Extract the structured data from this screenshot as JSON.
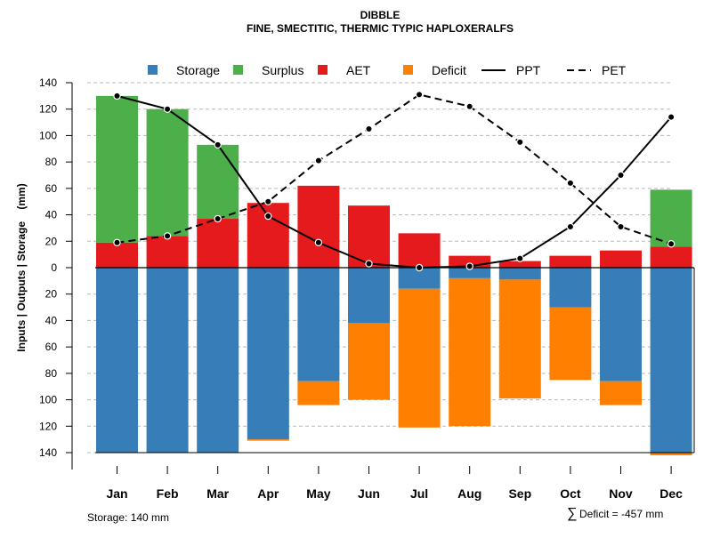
{
  "chart_data": {
    "type": "bar",
    "title": "DIBBLE",
    "subtitle": "FINE, SMECTITIC, THERMIC TYPIC HAPLOXERALFS",
    "ylabel": "Inputs | Outputs | Storage    (mm)",
    "ylim": [
      -140,
      140
    ],
    "yticks": [
      140,
      120,
      100,
      80,
      60,
      40,
      20,
      0,
      -20,
      -40,
      -60,
      -80,
      -100,
      -120,
      -140
    ],
    "ytick_labels": [
      "140",
      "120",
      "100",
      "80",
      "60",
      "40",
      "20",
      "0",
      "20",
      "40",
      "60",
      "80",
      "100",
      "120",
      "140"
    ],
    "grid": true,
    "legend_position": "top",
    "categories": [
      "Jan",
      "Feb",
      "Mar",
      "Apr",
      "May",
      "Jun",
      "Jul",
      "Aug",
      "Sep",
      "Oct",
      "Nov",
      "Dec"
    ],
    "series": [
      {
        "name": "Storage",
        "color": "#377EB8",
        "values": [
          140,
          140,
          140,
          130,
          86,
          42,
          16,
          8,
          9,
          30,
          86,
          140
        ]
      },
      {
        "name": "Surplus",
        "color": "#4DAF4A",
        "values": [
          111,
          96,
          56,
          0,
          0,
          0,
          0,
          0,
          0,
          0,
          0,
          43
        ]
      },
      {
        "name": "AET",
        "color": "#E41A1C",
        "values": [
          19,
          24,
          37,
          49,
          62,
          47,
          26,
          9,
          5,
          9,
          13,
          16
        ]
      },
      {
        "name": "Deficit",
        "color": "#FF7F00",
        "values": [
          0,
          0,
          0,
          1,
          18,
          58,
          105,
          112,
          90,
          55,
          18,
          2
        ]
      },
      {
        "name": "PPT",
        "color": "#000000",
        "line_style": "solid",
        "values": [
          130,
          120,
          93,
          39,
          19,
          3,
          0,
          1,
          7,
          31,
          70,
          114
        ]
      },
      {
        "name": "PET",
        "color": "#000000",
        "line_style": "dashed",
        "values": [
          19,
          24,
          37,
          50,
          81,
          105,
          131,
          122,
          95,
          64,
          31,
          18
        ]
      }
    ],
    "annotations": {
      "storage_note": "Storage: 140 mm",
      "deficit_symbol": "∑",
      "deficit_note": "Deficit = -457 mm"
    }
  }
}
